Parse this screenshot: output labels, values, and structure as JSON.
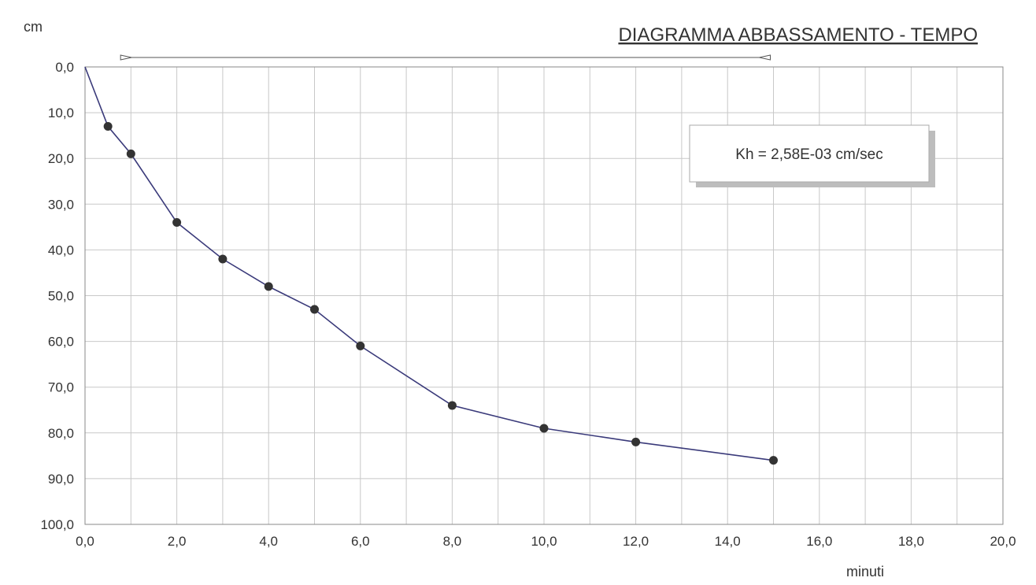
{
  "chart_data": {
    "type": "line",
    "title": "DIAGRAMMA   ABBASSAMENTO - TEMPO",
    "xlabel": "minuti",
    "ylabel": "cm",
    "xlim": [
      0,
      20
    ],
    "ylim": [
      0,
      100
    ],
    "y_inverted": true,
    "grid": true,
    "x_ticks": [
      0,
      2,
      4,
      6,
      8,
      10,
      12,
      14,
      16,
      18,
      20
    ],
    "x_tick_labels": [
      "0,0",
      "2,0",
      "4,0",
      "6,0",
      "8,0",
      "10,0",
      "12,0",
      "14,0",
      "16,0",
      "18,0",
      "20,0"
    ],
    "y_ticks": [
      0,
      10,
      20,
      30,
      40,
      50,
      60,
      70,
      80,
      90,
      100
    ],
    "y_tick_labels": [
      "0,0",
      "10,0",
      "20,0",
      "30,0",
      "40,0",
      "50,0",
      "60,0",
      "70,0",
      "80,0",
      "90,0",
      "100,0"
    ],
    "series": [
      {
        "color": "#3a3a7a",
        "marker_color": "#333333",
        "x": [
          0,
          0.5,
          1,
          2,
          3,
          4,
          5,
          6,
          8,
          10,
          12,
          15
        ],
        "y": [
          0,
          13,
          19,
          34,
          42,
          48,
          53,
          61,
          74,
          79,
          82,
          86
        ],
        "markers": [
          false,
          true,
          true,
          true,
          true,
          true,
          true,
          true,
          true,
          true,
          true,
          true
        ]
      }
    ],
    "range_indicator": {
      "x_start": 0.5,
      "x_end": 15
    },
    "annotation": {
      "text": "Kh = 2,58E-03 cm/sec"
    }
  }
}
